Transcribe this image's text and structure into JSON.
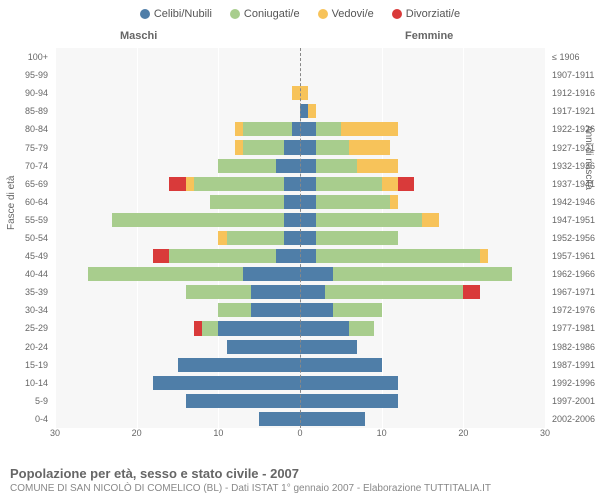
{
  "legend": [
    {
      "label": "Celibi/Nubili",
      "color": "#4f7ea8"
    },
    {
      "label": "Coniugati/e",
      "color": "#a8cd8d"
    },
    {
      "label": "Vedovi/e",
      "color": "#f7c35a"
    },
    {
      "label": "Divorziati/e",
      "color": "#d93a3a"
    }
  ],
  "gender": {
    "male": "Maschi",
    "female": "Femmine"
  },
  "axis_titles": {
    "left": "Fasce di età",
    "right": "Anni di nascita"
  },
  "x_axis": {
    "min": 0,
    "max": 30,
    "ticks": [
      30,
      20,
      10,
      0,
      10,
      20,
      30
    ]
  },
  "plot": {
    "background": "#f7f7f7",
    "grid_color": "#ffffff"
  },
  "title": "Popolazione per età, sesso e stato civile - 2007",
  "subtitle": "COMUNE DI SAN NICOLÒ DI COMELICO (BL) - Dati ISTAT 1° gennaio 2007 - Elaborazione TUTTITALIA.IT",
  "age_bands": [
    {
      "age": "100+",
      "birth": "≤ 1906",
      "m": {
        "c": 0,
        "co": 0,
        "v": 0,
        "d": 0
      },
      "f": {
        "c": 0,
        "co": 0,
        "v": 0,
        "d": 0
      }
    },
    {
      "age": "95-99",
      "birth": "1907-1911",
      "m": {
        "c": 0,
        "co": 0,
        "v": 0,
        "d": 0
      },
      "f": {
        "c": 0,
        "co": 0,
        "v": 0,
        "d": 0
      }
    },
    {
      "age": "90-94",
      "birth": "1912-1916",
      "m": {
        "c": 0,
        "co": 0,
        "v": 1,
        "d": 0
      },
      "f": {
        "c": 0,
        "co": 0,
        "v": 1,
        "d": 0
      }
    },
    {
      "age": "85-89",
      "birth": "1917-1921",
      "m": {
        "c": 0,
        "co": 0,
        "v": 0,
        "d": 0
      },
      "f": {
        "c": 1,
        "co": 0,
        "v": 1,
        "d": 0
      }
    },
    {
      "age": "80-84",
      "birth": "1922-1926",
      "m": {
        "c": 1,
        "co": 6,
        "v": 1,
        "d": 0
      },
      "f": {
        "c": 2,
        "co": 3,
        "v": 7,
        "d": 0
      }
    },
    {
      "age": "75-79",
      "birth": "1927-1931",
      "m": {
        "c": 2,
        "co": 5,
        "v": 1,
        "d": 0
      },
      "f": {
        "c": 2,
        "co": 4,
        "v": 5,
        "d": 0
      }
    },
    {
      "age": "70-74",
      "birth": "1932-1936",
      "m": {
        "c": 3,
        "co": 7,
        "v": 0,
        "d": 0
      },
      "f": {
        "c": 2,
        "co": 5,
        "v": 5,
        "d": 0
      }
    },
    {
      "age": "65-69",
      "birth": "1937-1941",
      "m": {
        "c": 2,
        "co": 11,
        "v": 1,
        "d": 2
      },
      "f": {
        "c": 2,
        "co": 8,
        "v": 2,
        "d": 2
      }
    },
    {
      "age": "60-64",
      "birth": "1942-1946",
      "m": {
        "c": 2,
        "co": 9,
        "v": 0,
        "d": 0
      },
      "f": {
        "c": 2,
        "co": 9,
        "v": 1,
        "d": 0
      }
    },
    {
      "age": "55-59",
      "birth": "1947-1951",
      "m": {
        "c": 2,
        "co": 21,
        "v": 0,
        "d": 0
      },
      "f": {
        "c": 2,
        "co": 13,
        "v": 2,
        "d": 0
      }
    },
    {
      "age": "50-54",
      "birth": "1952-1956",
      "m": {
        "c": 2,
        "co": 7,
        "v": 1,
        "d": 0
      },
      "f": {
        "c": 2,
        "co": 10,
        "v": 0,
        "d": 0
      }
    },
    {
      "age": "45-49",
      "birth": "1957-1961",
      "m": {
        "c": 3,
        "co": 13,
        "v": 0,
        "d": 2
      },
      "f": {
        "c": 2,
        "co": 20,
        "v": 1,
        "d": 0
      }
    },
    {
      "age": "40-44",
      "birth": "1962-1966",
      "m": {
        "c": 7,
        "co": 19,
        "v": 0,
        "d": 0
      },
      "f": {
        "c": 4,
        "co": 22,
        "v": 0,
        "d": 0
      }
    },
    {
      "age": "35-39",
      "birth": "1967-1971",
      "m": {
        "c": 6,
        "co": 8,
        "v": 0,
        "d": 0
      },
      "f": {
        "c": 3,
        "co": 17,
        "v": 0,
        "d": 2
      }
    },
    {
      "age": "30-34",
      "birth": "1972-1976",
      "m": {
        "c": 6,
        "co": 4,
        "v": 0,
        "d": 0
      },
      "f": {
        "c": 4,
        "co": 6,
        "v": 0,
        "d": 0
      }
    },
    {
      "age": "25-29",
      "birth": "1977-1981",
      "m": {
        "c": 10,
        "co": 2,
        "v": 0,
        "d": 1
      },
      "f": {
        "c": 6,
        "co": 3,
        "v": 0,
        "d": 0
      }
    },
    {
      "age": "20-24",
      "birth": "1982-1986",
      "m": {
        "c": 9,
        "co": 0,
        "v": 0,
        "d": 0
      },
      "f": {
        "c": 7,
        "co": 0,
        "v": 0,
        "d": 0
      }
    },
    {
      "age": "15-19",
      "birth": "1987-1991",
      "m": {
        "c": 15,
        "co": 0,
        "v": 0,
        "d": 0
      },
      "f": {
        "c": 10,
        "co": 0,
        "v": 0,
        "d": 0
      }
    },
    {
      "age": "10-14",
      "birth": "1992-1996",
      "m": {
        "c": 18,
        "co": 0,
        "v": 0,
        "d": 0
      },
      "f": {
        "c": 12,
        "co": 0,
        "v": 0,
        "d": 0
      }
    },
    {
      "age": "5-9",
      "birth": "1997-2001",
      "m": {
        "c": 14,
        "co": 0,
        "v": 0,
        "d": 0
      },
      "f": {
        "c": 12,
        "co": 0,
        "v": 0,
        "d": 0
      }
    },
    {
      "age": "0-4",
      "birth": "2002-2006",
      "m": {
        "c": 5,
        "co": 0,
        "v": 0,
        "d": 0
      },
      "f": {
        "c": 8,
        "co": 0,
        "v": 0,
        "d": 0
      }
    }
  ]
}
